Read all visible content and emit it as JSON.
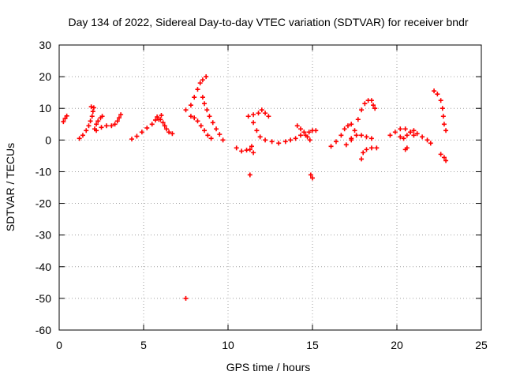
{
  "chart_data": {
    "type": "scatter",
    "title": "Day 134 of 2022, Sidereal Day-to-day VTEC variation (SDTVAR) for receiver bndr",
    "xlabel": "GPS time / hours",
    "ylabel": "SDTVAR / TECUs",
    "xlim": [
      0,
      25
    ],
    "ylim": [
      -60,
      30
    ],
    "xticks": [
      "0",
      "5",
      "10",
      "15",
      "20",
      "25"
    ],
    "yticks": [
      "30",
      "20",
      "10",
      "0",
      "-10",
      "-20",
      "-30",
      "-40",
      "-50",
      "-60"
    ],
    "grid": true,
    "marker_color": "#ff0000",
    "series": [
      {
        "points": [
          [
            0.25,
            5.8
          ],
          [
            0.35,
            6.8
          ],
          [
            0.45,
            7.6
          ],
          [
            1.2,
            0.5
          ],
          [
            1.4,
            1.5
          ],
          [
            1.6,
            3.0
          ],
          [
            1.75,
            4.5
          ],
          [
            1.85,
            6.0
          ],
          [
            1.95,
            7.5
          ],
          [
            1.9,
            10.5
          ],
          [
            2.0,
            9.0
          ],
          [
            2.05,
            10.2
          ],
          [
            2.1,
            3.5
          ],
          [
            2.2,
            5.0
          ],
          [
            2.3,
            6.0
          ],
          [
            2.45,
            7.0
          ],
          [
            2.55,
            7.5
          ],
          [
            2.2,
            3.0
          ],
          [
            2.5,
            4.0
          ],
          [
            2.8,
            4.5
          ],
          [
            3.1,
            4.5
          ],
          [
            3.3,
            5.0
          ],
          [
            3.45,
            6.0
          ],
          [
            3.55,
            7.0
          ],
          [
            3.65,
            8.0
          ],
          [
            4.3,
            0.3
          ],
          [
            4.6,
            1.2
          ],
          [
            4.9,
            2.5
          ],
          [
            5.2,
            3.8
          ],
          [
            5.5,
            5.0
          ],
          [
            5.7,
            6.3
          ],
          [
            5.8,
            7.3
          ],
          [
            5.9,
            6.5
          ],
          [
            6.05,
            7.8
          ],
          [
            6.0,
            6.5
          ],
          [
            6.15,
            5.5
          ],
          [
            6.25,
            4.5
          ],
          [
            6.35,
            3.5
          ],
          [
            6.5,
            2.5
          ],
          [
            6.7,
            2.0
          ],
          [
            7.5,
            9.5
          ],
          [
            7.8,
            11.0
          ],
          [
            8.0,
            13.5
          ],
          [
            8.2,
            16.0
          ],
          [
            8.35,
            18.0
          ],
          [
            8.5,
            19.0
          ],
          [
            8.7,
            20.0
          ],
          [
            7.8,
            7.5
          ],
          [
            8.0,
            7.0
          ],
          [
            8.2,
            6.0
          ],
          [
            8.4,
            4.5
          ],
          [
            8.6,
            3.0
          ],
          [
            8.8,
            1.5
          ],
          [
            9.0,
            0.5
          ],
          [
            8.5,
            13.5
          ],
          [
            8.6,
            11.5
          ],
          [
            8.75,
            9.5
          ],
          [
            8.9,
            7.5
          ],
          [
            9.1,
            5.5
          ],
          [
            9.3,
            3.5
          ],
          [
            9.5,
            1.8
          ],
          [
            9.7,
            0.0
          ],
          [
            7.5,
            -50.0
          ],
          [
            10.5,
            -2.5
          ],
          [
            10.8,
            -3.5
          ],
          [
            11.1,
            -3.2
          ],
          [
            11.3,
            -3.0
          ],
          [
            11.4,
            -2.0
          ],
          [
            11.5,
            -4.0
          ],
          [
            11.3,
            -11.0
          ],
          [
            11.2,
            7.5
          ],
          [
            11.5,
            8.0
          ],
          [
            11.8,
            8.5
          ],
          [
            12.0,
            9.5
          ],
          [
            12.2,
            8.5
          ],
          [
            12.4,
            7.5
          ],
          [
            11.5,
            5.5
          ],
          [
            11.7,
            3.0
          ],
          [
            11.9,
            1.0
          ],
          [
            12.2,
            0.0
          ],
          [
            12.6,
            -0.5
          ],
          [
            13.0,
            -1.0
          ],
          [
            13.4,
            -0.5
          ],
          [
            13.7,
            0.0
          ],
          [
            14.0,
            0.5
          ],
          [
            14.3,
            1.5
          ],
          [
            14.6,
            1.5
          ],
          [
            14.8,
            2.5
          ],
          [
            15.0,
            3.0
          ],
          [
            15.2,
            3.0
          ],
          [
            14.1,
            4.5
          ],
          [
            14.3,
            3.5
          ],
          [
            14.5,
            2.5
          ],
          [
            14.7,
            1.0
          ],
          [
            14.85,
            0.0
          ],
          [
            14.9,
            -11.0
          ],
          [
            15.0,
            -12.0
          ],
          [
            16.1,
            -2.0
          ],
          [
            16.4,
            -0.5
          ],
          [
            16.7,
            1.5
          ],
          [
            16.9,
            3.5
          ],
          [
            17.1,
            4.5
          ],
          [
            17.3,
            5.0
          ],
          [
            17.0,
            -1.5
          ],
          [
            17.3,
            0.0
          ],
          [
            17.6,
            1.5
          ],
          [
            17.9,
            1.5
          ],
          [
            18.2,
            1.0
          ],
          [
            18.5,
            0.5
          ],
          [
            17.3,
            0.5
          ],
          [
            17.5,
            3.0
          ],
          [
            17.7,
            6.5
          ],
          [
            17.9,
            9.5
          ],
          [
            18.1,
            11.5
          ],
          [
            18.3,
            12.5
          ],
          [
            18.5,
            12.5
          ],
          [
            18.6,
            11.0
          ],
          [
            18.7,
            10.0
          ],
          [
            17.9,
            -6.0
          ],
          [
            18.0,
            -4.0
          ],
          [
            18.2,
            -3.0
          ],
          [
            18.5,
            -2.5
          ],
          [
            18.8,
            -2.5
          ],
          [
            19.6,
            1.5
          ],
          [
            19.9,
            2.5
          ],
          [
            20.2,
            3.5
          ],
          [
            20.5,
            3.5
          ],
          [
            20.8,
            2.5
          ],
          [
            21.0,
            1.5
          ],
          [
            20.2,
            1.0
          ],
          [
            20.4,
            0.5
          ],
          [
            20.6,
            1.5
          ],
          [
            20.8,
            2.5
          ],
          [
            21.0,
            3.0
          ],
          [
            21.2,
            2.0
          ],
          [
            21.5,
            1.0
          ],
          [
            21.8,
            0.0
          ],
          [
            22.0,
            -1.0
          ],
          [
            20.5,
            -3.0
          ],
          [
            20.6,
            -2.5
          ],
          [
            22.2,
            15.5
          ],
          [
            22.4,
            14.5
          ],
          [
            22.6,
            12.5
          ],
          [
            22.7,
            10.0
          ],
          [
            22.75,
            7.5
          ],
          [
            22.8,
            5.0
          ],
          [
            22.9,
            3.0
          ],
          [
            22.6,
            -4.5
          ],
          [
            22.8,
            -5.5
          ],
          [
            22.9,
            -6.5
          ]
        ]
      }
    ]
  }
}
